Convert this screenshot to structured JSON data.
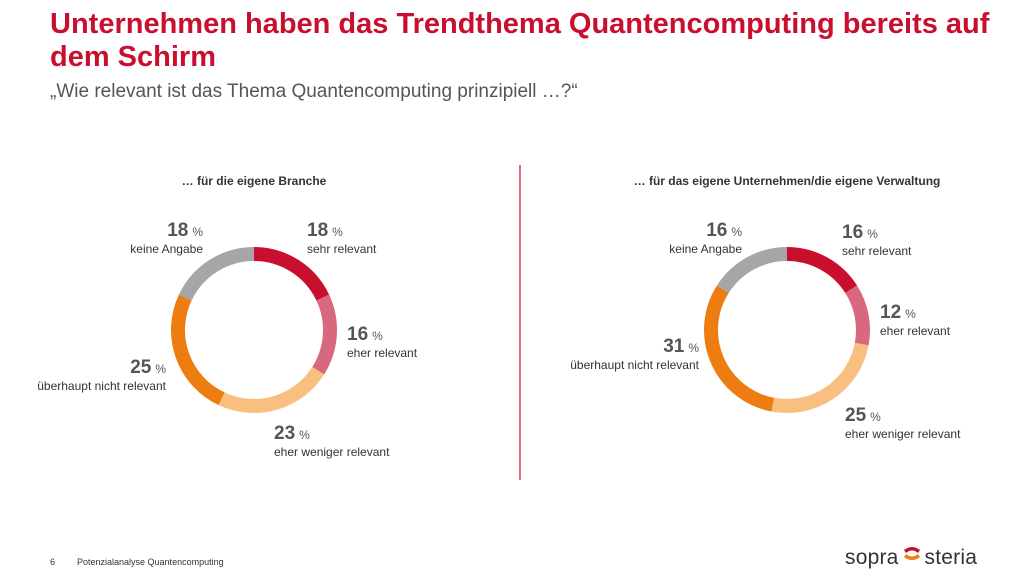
{
  "slide": {
    "title": "Unternehmen haben das Trendthema Quantencomputing bereits auf dem Schirm",
    "subtitle": "„Wie relevant ist das Thema Quantencomputing prinzipiell …?“",
    "page_number": "6",
    "footer_text": "Potenzialanalyse Quantencomputing",
    "logo_left": "sopra",
    "logo_right": "steria"
  },
  "colors": {
    "sehr relevant": "#c8102e",
    "eher relevant": "#d9687f",
    "eher weniger relevant": "#f9bf80",
    "überhaupt nicht relevant": "#ee7d11",
    "keine Angabe": "#a6a6a6",
    "title": "#c8102e",
    "divider": "#c8102e"
  },
  "chart_data": [
    {
      "type": "pie",
      "subtype": "donut",
      "title": "… für die eigene Branche",
      "unit": "%",
      "slices": [
        {
          "label": "sehr relevant",
          "value": 18
        },
        {
          "label": "eher relevant",
          "value": 16
        },
        {
          "label": "eher weniger relevant",
          "value": 23
        },
        {
          "label": "überhaupt nicht relevant",
          "value": 25
        },
        {
          "label": "keine Angabe",
          "value": 18
        }
      ]
    },
    {
      "type": "pie",
      "subtype": "donut",
      "title": "… für das eigene Unternehmen/die eigene Verwaltung",
      "unit": "%",
      "slices": [
        {
          "label": "sehr relevant",
          "value": 16
        },
        {
          "label": "eher relevant",
          "value": 12
        },
        {
          "label": "eher weniger relevant",
          "value": 25
        },
        {
          "label": "überhaupt nicht relevant",
          "value": 31
        },
        {
          "label": "keine Angabe",
          "value": 16
        }
      ]
    }
  ]
}
